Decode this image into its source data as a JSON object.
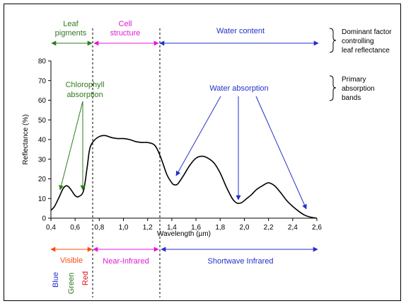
{
  "chart_data": {
    "type": "line",
    "xlabel": "Wavelength (µm)",
    "ylabel": "Reflectance (%)",
    "xlim": [
      0.4,
      2.6
    ],
    "ylim": [
      0,
      80
    ],
    "x_ticks": [
      "0,4",
      "0,6",
      "0,8",
      "1,0",
      "1,2",
      "1,4",
      "1,6",
      "1,8",
      "2,0",
      "2,2",
      "2,4",
      "2,6"
    ],
    "y_ticks": [
      "0",
      "10",
      "20",
      "30",
      "40",
      "50",
      "60",
      "70",
      "80"
    ],
    "series": [
      {
        "x": [
          0.4,
          0.43,
          0.47,
          0.5,
          0.53,
          0.56,
          0.6,
          0.63,
          0.67,
          0.7,
          0.72,
          0.75,
          0.8,
          0.85,
          0.9,
          0.95,
          1.0,
          1.05,
          1.1,
          1.15,
          1.2,
          1.25,
          1.28,
          1.32,
          1.36,
          1.4,
          1.42,
          1.45,
          1.5,
          1.55,
          1.6,
          1.65,
          1.7,
          1.75,
          1.8,
          1.85,
          1.9,
          1.93,
          1.95,
          1.98,
          2.02,
          2.06,
          2.1,
          2.15,
          2.2,
          2.25,
          2.3,
          2.35,
          2.4,
          2.45,
          2.5,
          2.55,
          2.6
        ],
        "y": [
          4,
          6,
          11,
          15,
          16.5,
          15,
          11.5,
          11,
          14,
          26,
          35,
          39,
          41.5,
          42,
          41,
          40.5,
          40.5,
          40,
          39,
          38.5,
          38.5,
          37.5,
          35,
          29,
          22,
          18,
          17,
          17.5,
          22,
          27,
          30.5,
          31.5,
          30.5,
          28,
          23,
          16,
          10,
          8,
          7.5,
          8,
          10,
          12,
          14.5,
          16.5,
          18,
          16.5,
          13,
          9,
          6,
          3.5,
          1.5,
          0.5,
          0
        ]
      }
    ],
    "top_regions": {
      "leaf_pigments": "Leaf pigments",
      "cell_structure": "Cell structure",
      "water_content": "Water content",
      "dominant_factor": [
        "Dominant factor",
        "controlling",
        "leaf reflectance"
      ]
    },
    "absorption": {
      "chlorophyll": [
        "Chlorophyll",
        "absorption"
      ],
      "water": "Water absorption",
      "primary_bands": [
        "Primary",
        "absorption",
        "bands"
      ]
    },
    "bottom_regions": {
      "visible": "Visible",
      "near_infrared": "Near-Infrared",
      "shortwave_infrared": "Shortwave Infrared",
      "blue": "Blue",
      "green": "Green",
      "red": "Red"
    },
    "colors": {
      "green": "#2e7d1f",
      "magenta": "#e01bd6",
      "blue": "#2330c8",
      "orange": "#ff4a14",
      "red": "#e01010",
      "curve": "#000000"
    }
  }
}
